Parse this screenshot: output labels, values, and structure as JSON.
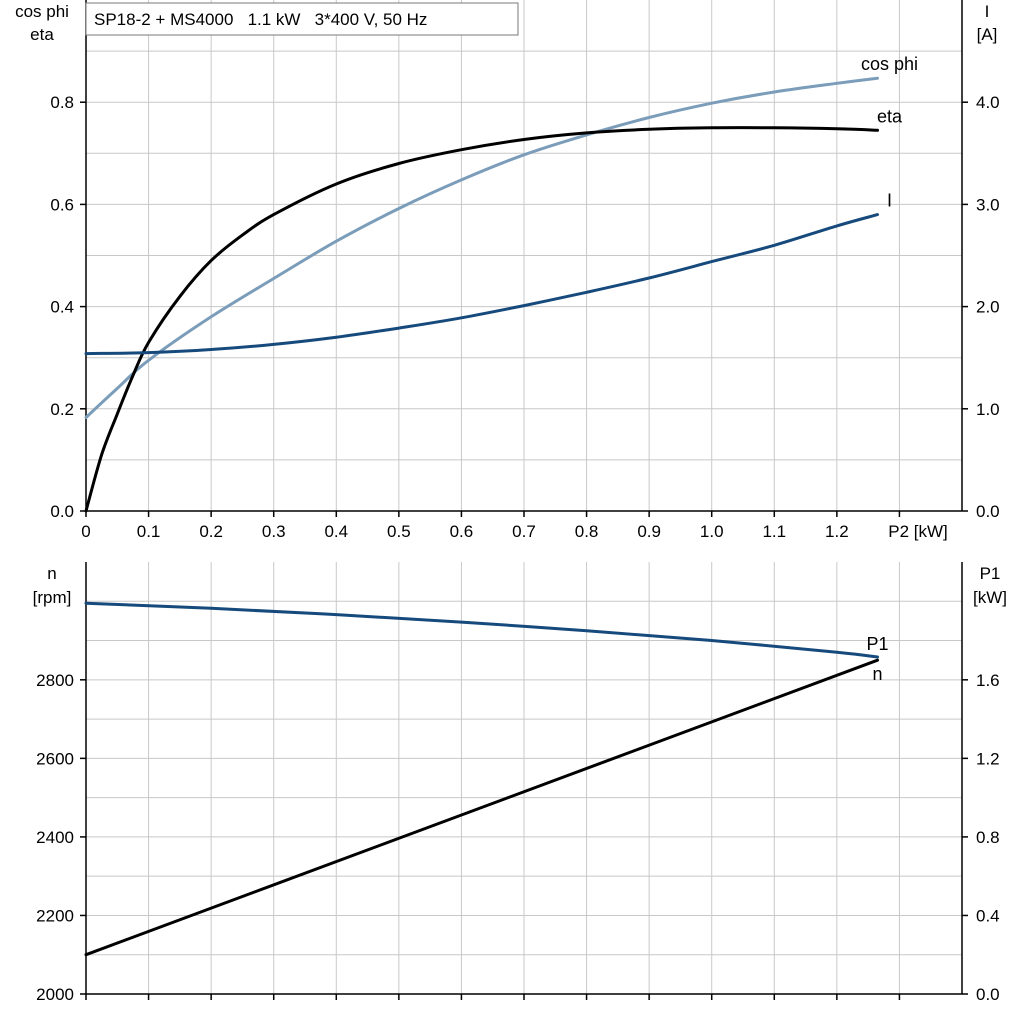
{
  "chart_data": [
    {
      "type": "line",
      "title": "SP18-2 + MS4000   1.1 kW   3*400 V, 50 Hz",
      "xlabel": "P2 [kW]",
      "x_ticks": [
        "0",
        "0.1",
        "0.2",
        "0.3",
        "0.4",
        "0.5",
        "0.6",
        "0.7",
        "0.8",
        "0.9",
        "1.0",
        "1.1",
        "1.2"
      ],
      "xlim": [
        0,
        1.4
      ],
      "y_left": {
        "label_line1": "cos phi",
        "label_line2": "eta",
        "lim": [
          0,
          1.0
        ],
        "ticks": [
          "0.0",
          "0.2",
          "0.4",
          "0.6",
          "0.8"
        ]
      },
      "y_right": {
        "label_line1": "I",
        "label_line2": "[A]",
        "lim": [
          0,
          5.0
        ],
        "ticks": [
          "0.0",
          "1.0",
          "2.0",
          "3.0",
          "4.0"
        ]
      },
      "grid": true,
      "series": [
        {
          "name": "cos phi",
          "axis": "left",
          "color": "#7b9dba",
          "x": [
            0,
            0.05,
            0.1,
            0.2,
            0.3,
            0.4,
            0.5,
            0.6,
            0.7,
            0.8,
            0.9,
            1.0,
            1.1,
            1.2,
            1.265
          ],
          "y": [
            0.183,
            0.24,
            0.295,
            0.38,
            0.455,
            0.528,
            0.592,
            0.648,
            0.697,
            0.736,
            0.77,
            0.798,
            0.82,
            0.837,
            0.847
          ]
        },
        {
          "name": "eta",
          "axis": "left",
          "color": "#000000",
          "x": [
            0,
            0.025,
            0.05,
            0.075,
            0.1,
            0.15,
            0.2,
            0.25,
            0.3,
            0.4,
            0.5,
            0.6,
            0.7,
            0.8,
            0.9,
            1.0,
            1.1,
            1.2,
            1.265
          ],
          "y": [
            0,
            0.11,
            0.19,
            0.265,
            0.33,
            0.42,
            0.49,
            0.54,
            0.58,
            0.64,
            0.68,
            0.707,
            0.727,
            0.74,
            0.747,
            0.75,
            0.75,
            0.748,
            0.745
          ]
        },
        {
          "name": "I",
          "axis": "right",
          "color": "#164a7c",
          "x": [
            0,
            0.1,
            0.2,
            0.3,
            0.4,
            0.5,
            0.6,
            0.7,
            0.8,
            0.9,
            1.0,
            1.1,
            1.2,
            1.265
          ],
          "y": [
            1.54,
            1.55,
            1.58,
            1.63,
            1.7,
            1.79,
            1.89,
            2.01,
            2.14,
            2.28,
            2.44,
            2.6,
            2.79,
            2.9
          ]
        }
      ]
    },
    {
      "type": "line",
      "xlim": [
        0,
        1.4
      ],
      "y_left": {
        "label_line1": "n",
        "label_line2": "[rpm]",
        "lim": [
          2000,
          3100
        ],
        "ticks": [
          "2000",
          "2200",
          "2400",
          "2600",
          "2800"
        ]
      },
      "y_right": {
        "label_line1": "P1",
        "label_line2": "[kW]",
        "lim": [
          0,
          2.2
        ],
        "ticks": [
          "0.0",
          "0.4",
          "0.8",
          "1.2",
          "1.6"
        ]
      },
      "grid": true,
      "series": [
        {
          "name": "n",
          "axis": "left",
          "color": "#164a7c",
          "x": [
            0,
            0.2,
            0.4,
            0.6,
            0.8,
            1.0,
            1.2,
            1.265
          ],
          "y": [
            2995,
            2982,
            2966,
            2947,
            2925,
            2900,
            2870,
            2858
          ]
        },
        {
          "name": "P1",
          "axis": "right",
          "color": "#000000",
          "x": [
            0,
            1.265
          ],
          "y": [
            0.2,
            1.7
          ]
        }
      ]
    }
  ]
}
